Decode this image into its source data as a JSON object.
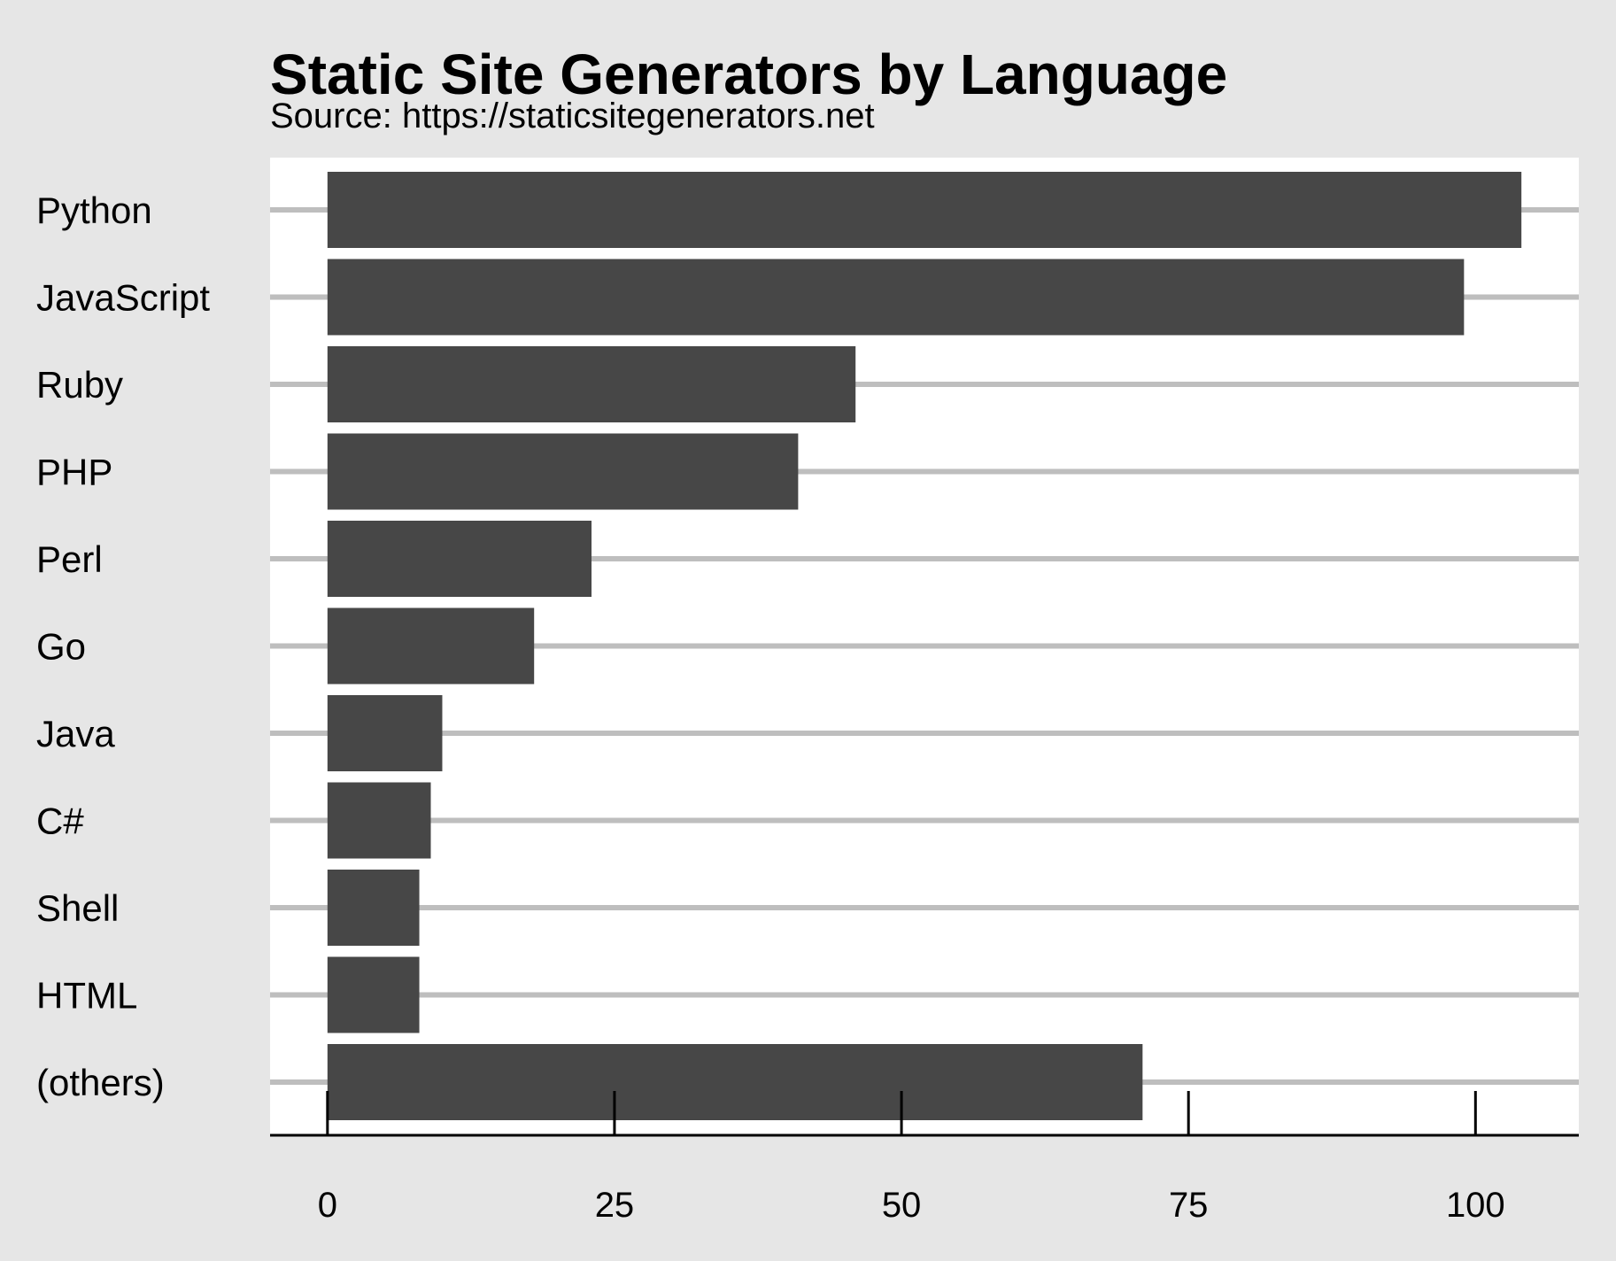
{
  "chart_data": {
    "type": "bar",
    "orientation": "horizontal",
    "title": "Static Site Generators by Language",
    "subtitle": "Source: https://staticsitegenerators.net",
    "categories": [
      "Python",
      "JavaScript",
      "Ruby",
      "PHP",
      "Perl",
      "Go",
      "Java",
      "C#",
      "Shell",
      "HTML",
      "(others)"
    ],
    "values": [
      104,
      99,
      46,
      41,
      23,
      18,
      10,
      9,
      8,
      8,
      71
    ],
    "xlim": [
      -5,
      109
    ],
    "xticks": [
      0,
      25,
      50,
      75,
      100
    ],
    "xtick_labels": [
      "0",
      "25",
      "50",
      "75",
      "100"
    ],
    "xlabel": "",
    "ylabel": "",
    "grid": "horizontal",
    "legend": "none",
    "colors": {
      "background": "#e6e6e6",
      "panel": "#ffffff",
      "bar": "#474747",
      "grid": "#bebebe",
      "axis": "#000000"
    }
  }
}
